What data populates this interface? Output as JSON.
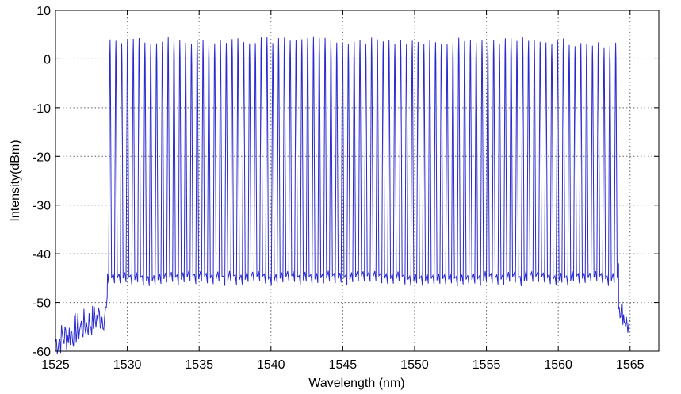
{
  "chart_data": {
    "type": "line",
    "title": "",
    "xlabel": "Wavelength (nm)",
    "ylabel": "Intensity(dBm)",
    "xlim": [
      1525,
      1567
    ],
    "ylim": [
      -60,
      10
    ],
    "x_ticks": [
      1525,
      1530,
      1535,
      1540,
      1545,
      1550,
      1555,
      1560,
      1565
    ],
    "x_tick_labels": [
      "1525",
      "1530",
      "1535",
      "1540",
      "1545",
      "1550",
      "1555",
      "1560",
      "1565"
    ],
    "y_ticks": [
      -60,
      -50,
      -40,
      -30,
      -20,
      -10,
      0,
      10
    ],
    "y_tick_labels": [
      "-60",
      "-50",
      "-40",
      "-30",
      "-20",
      "-10",
      "0",
      "10"
    ],
    "grid": true,
    "grid_style": "dotted",
    "line_color": "#2a2ad0",
    "series": [
      {
        "comb": {
          "start_nm": 1528.8,
          "end_nm": 1564.0,
          "num_lines": 88,
          "peak_dbm": 4.5,
          "trough_dbm": -45.5
        },
        "noise_floor_left": {
          "x_range": [
            1525,
            1528.6
          ],
          "level_range": [
            -58,
            -48
          ]
        },
        "noise_floor_right": {
          "x_range": [
            1564.2,
            1565
          ],
          "level_range": [
            -56,
            -50
          ]
        }
      }
    ]
  }
}
